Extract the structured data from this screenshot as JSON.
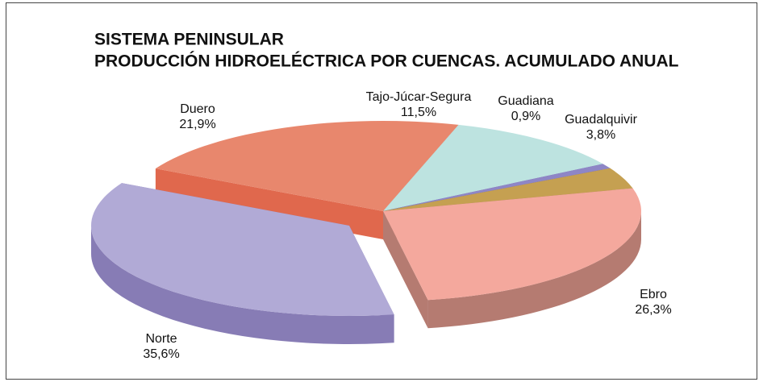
{
  "chart_data": {
    "type": "pie3d",
    "title": "SISTEMA PENINSULAR",
    "subtitle": "PRODUCCIÓN HIDROELÉCTRICA POR CUENCAS.  ACUMULADO ANUAL",
    "categories": [
      "Norte",
      "Duero",
      "Tajo-Júcar-Segura",
      "Guadiana",
      "Guadalquivir",
      "Ebro"
    ],
    "values": [
      35.6,
      21.9,
      11.5,
      0.9,
      3.8,
      26.3
    ],
    "value_labels": [
      "35,6%",
      "21,9%",
      "11,5%",
      "0,9%",
      "3,8%",
      "26,3%"
    ],
    "colors": [
      "#b1aad6",
      "#e8876d",
      "#bde3e0",
      "#8e86c6",
      "#c5a051",
      "#f4a89d"
    ],
    "side_colors": [
      "#877cb5",
      "#e0684d",
      "#9fc8c4",
      "#6f66a8",
      "#a3833c",
      "#b57b71"
    ],
    "exploded": [
      "Norte"
    ]
  }
}
